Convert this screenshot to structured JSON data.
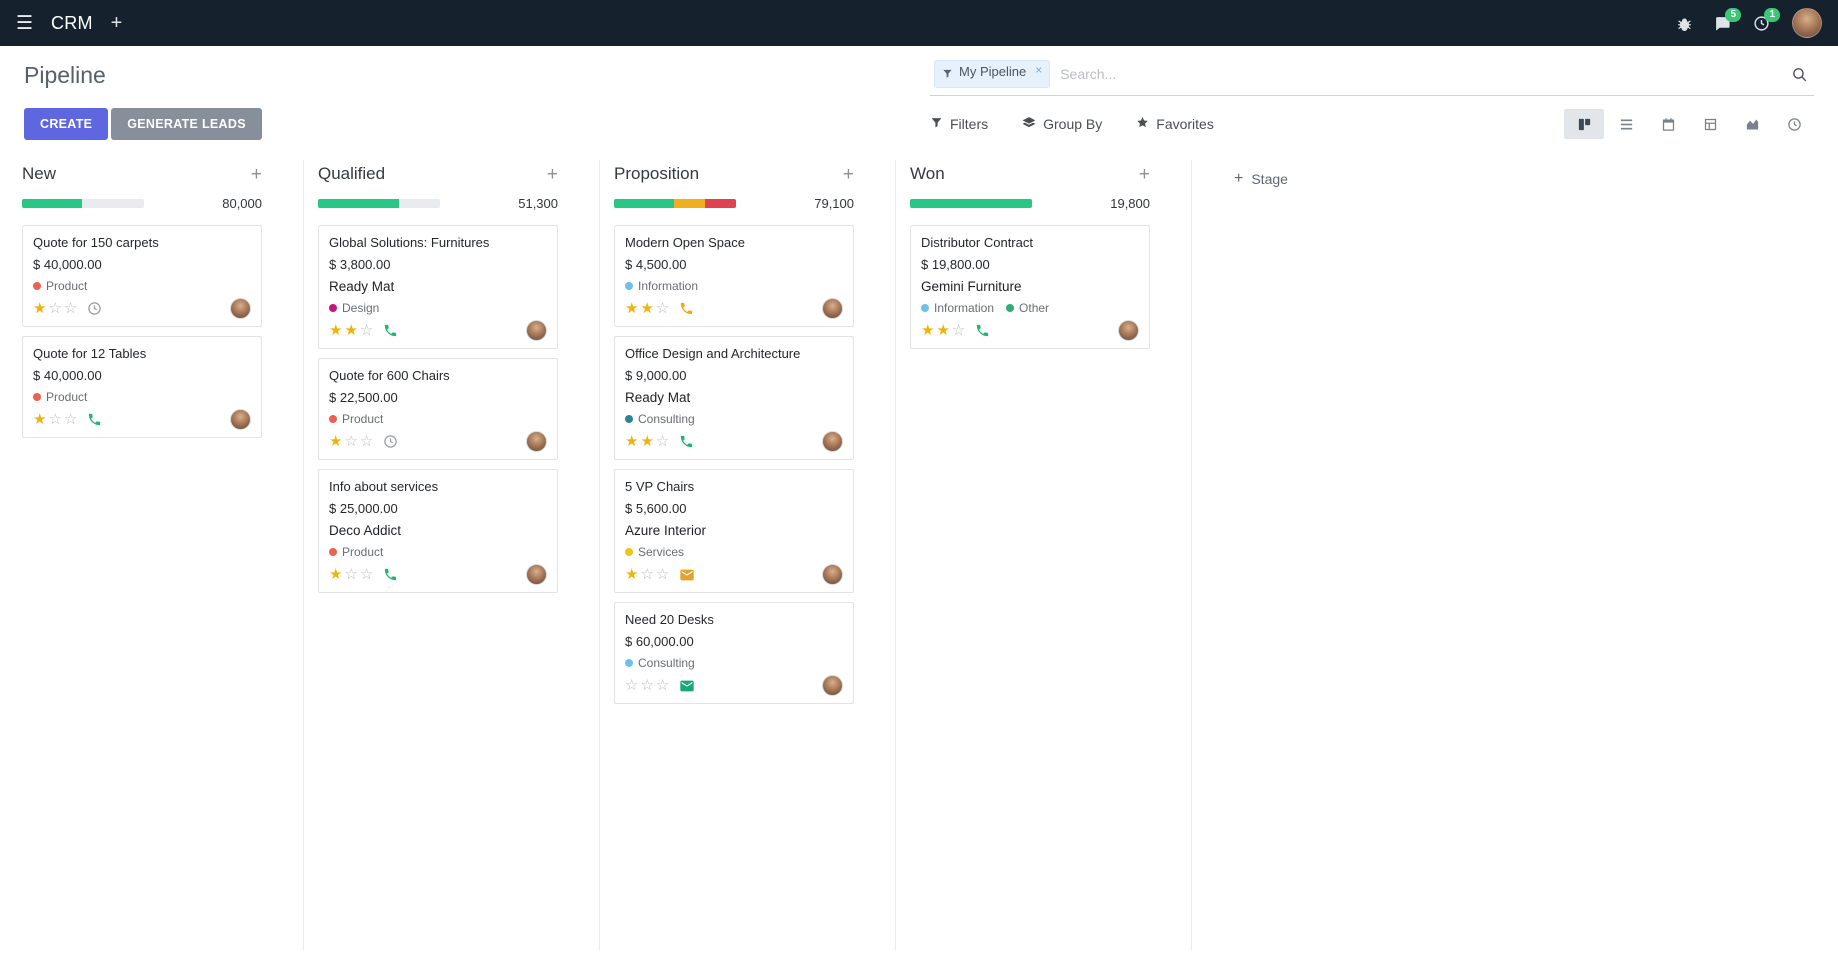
{
  "topbar": {
    "app_name": "CRM",
    "messages_badge": "5",
    "activities_badge": "1"
  },
  "control_panel": {
    "title": "Pipeline",
    "search": {
      "facet_label": "My Pipeline",
      "remove_facet": "×",
      "placeholder": "Search..."
    },
    "create_label": "CREATE",
    "generate_leads_label": "GENERATE LEADS",
    "filters_label": "Filters",
    "group_by_label": "Group By",
    "favorites_label": "Favorites"
  },
  "board": {
    "add_stage_label": "Stage",
    "columns": [
      {
        "name": "New",
        "total": "80,000",
        "progress": [
          {
            "color": "#29C786",
            "pct": 49
          }
        ],
        "cards": [
          {
            "title": "Quote for 150 carpets",
            "amount": "$ 40,000.00",
            "tags": [
              {
                "label": "Product",
                "color": "#F06050"
              }
            ],
            "stars": 1,
            "activity": {
              "type": "clock",
              "color": "#979CA3"
            }
          },
          {
            "title": "Quote for 12 Tables",
            "amount": "$ 40,000.00",
            "tags": [
              {
                "label": "Product",
                "color": "#F06050"
              }
            ],
            "stars": 1,
            "activity": {
              "type": "phone",
              "color": "#1FB66E"
            }
          }
        ]
      },
      {
        "name": "Qualified",
        "total": "51,300",
        "progress": [
          {
            "color": "#29C786",
            "pct": 66
          }
        ],
        "cards": [
          {
            "title": "Global Solutions: Furnitures",
            "amount": "$ 3,800.00",
            "partner": "Ready Mat",
            "tags": [
              {
                "label": "Design",
                "color": "#C7157F"
              }
            ],
            "stars": 2,
            "activity": {
              "type": "phone",
              "color": "#1FB66E"
            }
          },
          {
            "title": "Quote for 600 Chairs",
            "amount": "$ 22,500.00",
            "tags": [
              {
                "label": "Product",
                "color": "#F06050"
              }
            ],
            "stars": 1,
            "activity": {
              "type": "clock",
              "color": "#979CA3"
            }
          },
          {
            "title": "Info about services",
            "amount": "$ 25,000.00",
            "partner": "Deco Addict",
            "tags": [
              {
                "label": "Product",
                "color": "#F06050"
              }
            ],
            "stars": 1,
            "activity": {
              "type": "phone",
              "color": "#1FB66E"
            }
          }
        ]
      },
      {
        "name": "Proposition",
        "total": "79,100",
        "progress": [
          {
            "color": "#29C786",
            "pct": 49
          },
          {
            "color": "#EFAF1F",
            "pct": 26
          },
          {
            "color": "#E04350",
            "pct": 25
          }
        ],
        "cards": [
          {
            "title": "Modern Open Space",
            "amount": "$ 4,500.00",
            "tags": [
              {
                "label": "Information",
                "color": "#6CC1ED"
              }
            ],
            "stars": 2,
            "activity": {
              "type": "phone",
              "color": "#F2A60F"
            }
          },
          {
            "title": "Office Design and Architecture",
            "amount": "$ 9,000.00",
            "partner": "Ready Mat",
            "tags": [
              {
                "label": "Consulting",
                "color": "#2C8397"
              }
            ],
            "stars": 2,
            "activity": {
              "type": "phone",
              "color": "#1FB66E"
            }
          },
          {
            "title": "5 VP Chairs",
            "amount": "$ 5,600.00",
            "partner": "Azure Interior",
            "tags": [
              {
                "label": "Services",
                "color": "#F0C414"
              }
            ],
            "stars": 1,
            "activity": {
              "type": "envelope",
              "color": "#E3A12E"
            }
          },
          {
            "title": "Need 20 Desks",
            "amount": "$ 60,000.00",
            "tags": [
              {
                "label": "Consulting",
                "color": "#6CC1ED"
              }
            ],
            "stars": 0,
            "activity": {
              "type": "envelope",
              "color": "#16A77B"
            }
          }
        ]
      },
      {
        "name": "Won",
        "total": "19,800",
        "progress": [
          {
            "color": "#29C786",
            "pct": 100
          }
        ],
        "cards": [
          {
            "title": "Distributor Contract",
            "amount": "$ 19,800.00",
            "partner": "Gemini Furniture",
            "tags": [
              {
                "label": "Information",
                "color": "#6CC1ED"
              },
              {
                "label": "Other",
                "color": "#2FAB73"
              }
            ],
            "stars": 2,
            "activity": {
              "type": "phone",
              "color": "#1FB66E"
            }
          }
        ]
      }
    ]
  }
}
